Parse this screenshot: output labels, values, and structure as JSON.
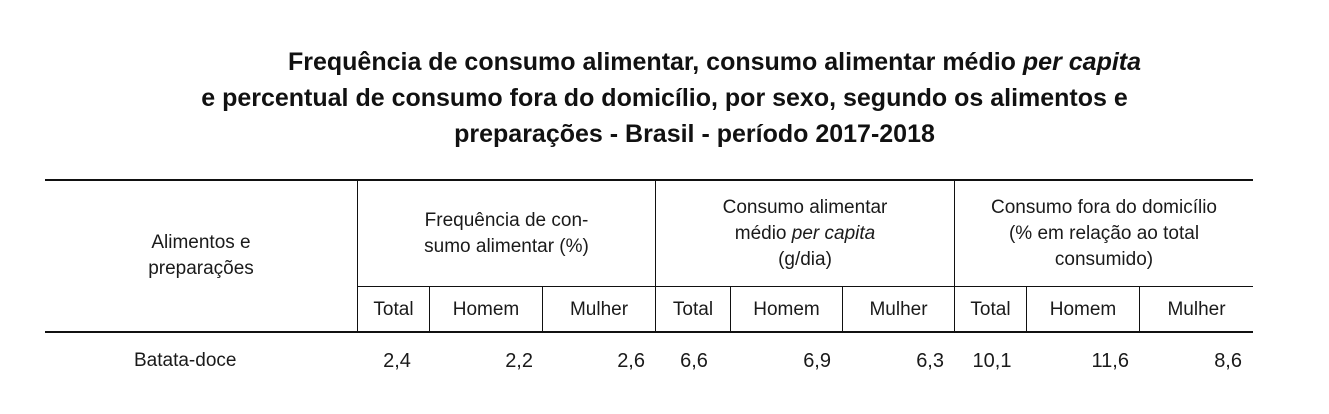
{
  "title": {
    "line1_a": "Frequência de consumo alimentar, consumo alimentar médio ",
    "line1_em": "per capita",
    "line2": "e percentual de consumo fora do domicílio, por sexo, segundo os alimentos e",
    "line3": "preparações - Brasil - período 2017-2018"
  },
  "table": {
    "row_header_line1": "Alimentos e",
    "row_header_line2": "preparações",
    "group1_line1": "Frequência de con-",
    "group1_line2": "sumo alimentar (%)",
    "group2_line1": "Consumo alimentar",
    "group2_line2_a": "médio ",
    "group2_line2_em": "per capita",
    "group2_line3": "(g/dia)",
    "group3_line1": "Consumo fora do domicílio",
    "group3_line2": "(% em relação ao total",
    "group3_line3": "consumido)",
    "sub_headers": [
      "Total",
      "Homem",
      "Mulher",
      "Total",
      "Homem",
      "Mulher",
      "Total",
      "Homem",
      "Mulher"
    ],
    "rows": [
      {
        "label": "Batata-doce",
        "values": [
          "2,4",
          "2,2",
          "2,6",
          "6,6",
          "6,9",
          "6,3",
          "10,1",
          "11,6",
          "8,6"
        ]
      }
    ]
  }
}
